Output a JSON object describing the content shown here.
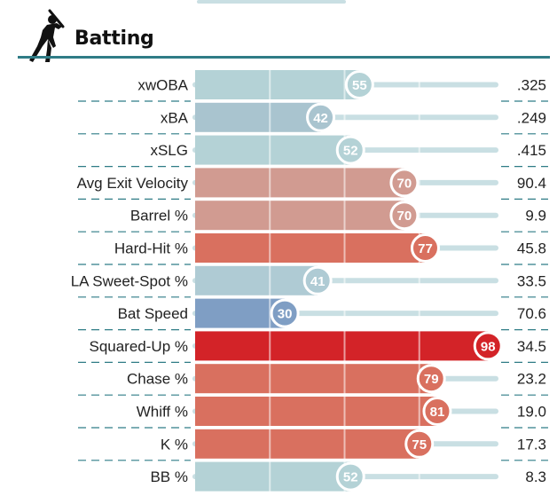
{
  "section": {
    "title": "Batting",
    "icon": "batter-silhouette-icon"
  },
  "colors": {
    "rule": "#2f7c86",
    "track": "#c9dfe3",
    "scale": {
      "low_blue": "#7f9ec4",
      "mid_blue": "#a9c4cf",
      "neutral": "#b4d2d6",
      "light_red": "#d19b91",
      "red": "#d9705f",
      "deep_red": "#d32328"
    }
  },
  "chart_data": {
    "type": "bar",
    "title": "Batting",
    "xlim": [
      0,
      100
    ],
    "categories": [
      "xwOBA",
      "xBA",
      "xSLG",
      "Avg Exit Velocity",
      "Barrel %",
      "Hard-Hit %",
      "LA Sweet-Spot %",
      "Bat Speed",
      "Squared-Up %",
      "Chase %",
      "Whiff %",
      "K %",
      "BB %"
    ],
    "series": [
      {
        "values": [
          55,
          42,
          52,
          70,
          70,
          77,
          41,
          30,
          98,
          79,
          81,
          75,
          52
        ]
      }
    ],
    "stat_values": [
      ".325",
      ".249",
      ".415",
      "90.4",
      "9.9",
      "45.8",
      "33.5",
      "70.6",
      "34.5",
      "23.2",
      "19.0",
      "17.3",
      "8.3"
    ],
    "bar_colors": [
      "#b4d2d6",
      "#a9c4cf",
      "#b4d2d6",
      "#d19b91",
      "#d19b91",
      "#d9705f",
      "#afcbd4",
      "#7f9ec4",
      "#d32328",
      "#d9705f",
      "#d9705f",
      "#d9705f",
      "#b4d2d6"
    ],
    "grid": true,
    "legend": "none"
  }
}
